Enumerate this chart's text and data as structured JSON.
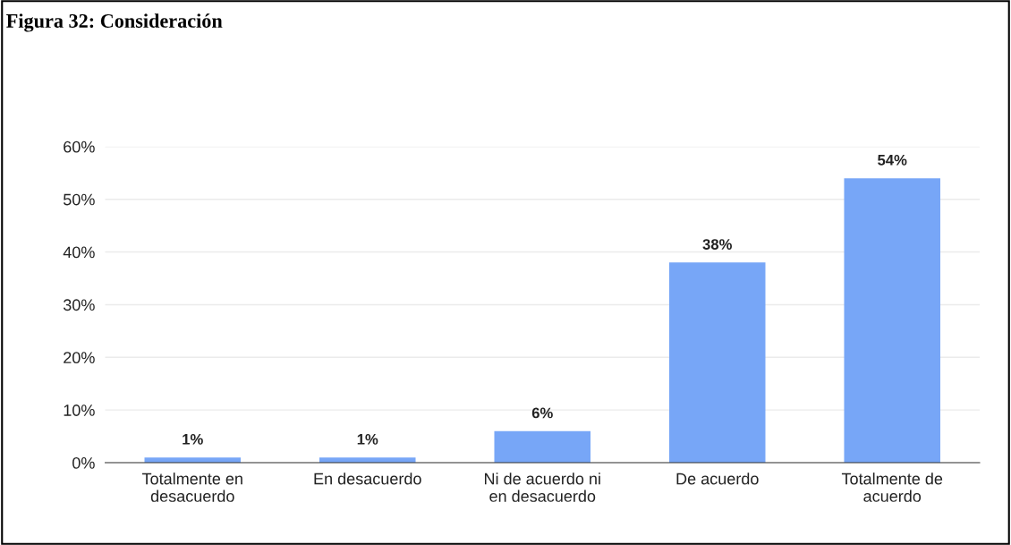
{
  "chart_data": {
    "type": "bar",
    "title": "Figura 32: Consideración",
    "categories": [
      "Totalmente en\ndesacuerdo",
      "En desacuerdo",
      "Ni de acuerdo ni\nen desacuerdo",
      "De acuerdo",
      "Totalmente de\nacuerdo"
    ],
    "values": [
      1,
      1,
      6,
      38,
      54
    ],
    "color": "#77a6f7",
    "ylim": [
      0,
      60
    ],
    "yticks": [
      {
        "value": 0,
        "label": "0%"
      },
      {
        "value": 10,
        "label": "10%"
      },
      {
        "value": 20,
        "label": "20%"
      },
      {
        "value": 30,
        "label": "30%"
      },
      {
        "value": 40,
        "label": "40%"
      },
      {
        "value": 50,
        "label": "50%"
      },
      {
        "value": 60,
        "label": "60%"
      }
    ],
    "value_labels": [
      "1%",
      "1%",
      "6%",
      "38%",
      "54%"
    ],
    "grid": "y",
    "legend": false
  }
}
